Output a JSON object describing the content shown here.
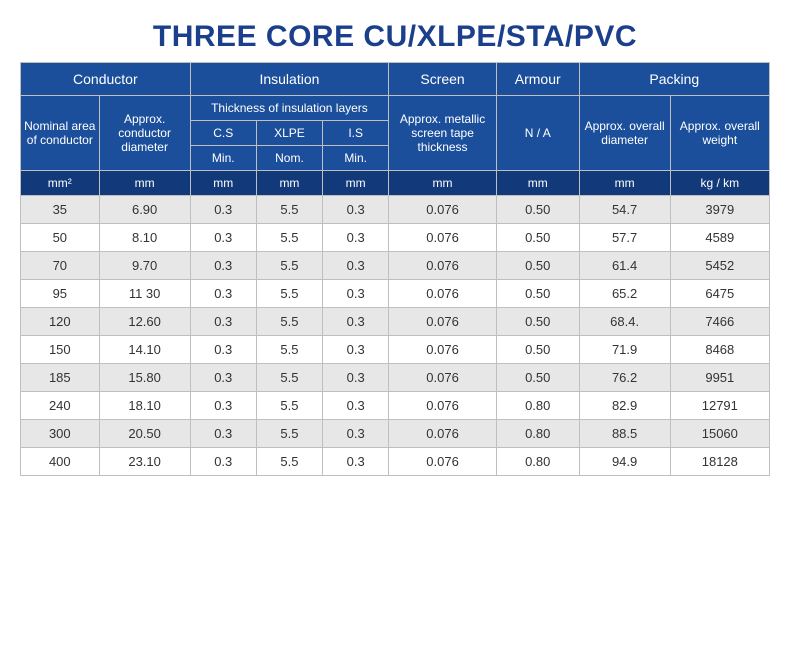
{
  "title": "THREE CORE CU/XLPE/STA/PVC",
  "colors": {
    "title": "#1b3f8b",
    "header_bg": "#1b4f9c",
    "units_bg": "#123a7a",
    "border": "#bfbfbf",
    "zebra": "#e7e7e7",
    "white": "#ffffff"
  },
  "header": {
    "groups": {
      "conductor": "Conductor",
      "insulation": "Insulation",
      "screen": "Screen",
      "armour": "Armour",
      "packing": "Packing"
    },
    "thickness_label": "Thickness of insulation layers",
    "sub": {
      "nominal_area": "Nominal area of conductor",
      "conductor_dia": "Approx. conductor diameter",
      "cs": "C.S",
      "xlpe": "XLPE",
      "is": "I.S",
      "screen": "Approx. metallic screen tape thickness",
      "armour": "N / A",
      "overall_dia": "Approx. overall diameter",
      "overall_wt": "Approx. overall weight"
    },
    "minnom": {
      "cs": "Min.",
      "xlpe": "Nom.",
      "is": "Min."
    },
    "units": {
      "nominal_area": "mm²",
      "conductor_dia": "mm",
      "cs": "mm",
      "xlpe": "mm",
      "is": "mm",
      "screen": "mm",
      "armour": "mm",
      "overall_dia": "mm",
      "overall_wt": "kg / km"
    }
  },
  "rows": [
    {
      "area": "35",
      "dia": "6.90",
      "cs": "0.3",
      "xlpe": "5.5",
      "is": "0.3",
      "screen": "0.076",
      "armour": "0.50",
      "od": "54.7",
      "wt": "3979"
    },
    {
      "area": "50",
      "dia": "8.10",
      "cs": "0.3",
      "xlpe": "5.5",
      "is": "0.3",
      "screen": "0.076",
      "armour": "0.50",
      "od": "57.7",
      "wt": "4589"
    },
    {
      "area": "70",
      "dia": "9.70",
      "cs": "0.3",
      "xlpe": "5.5",
      "is": "0.3",
      "screen": "0.076",
      "armour": "0.50",
      "od": "61.4",
      "wt": "5452"
    },
    {
      "area": "95",
      "dia": "11 30",
      "cs": "0.3",
      "xlpe": "5.5",
      "is": "0.3",
      "screen": "0.076",
      "armour": "0.50",
      "od": "65.2",
      "wt": "6475"
    },
    {
      "area": "120",
      "dia": "12.60",
      "cs": "0.3",
      "xlpe": "5.5",
      "is": "0.3",
      "screen": "0.076",
      "armour": "0.50",
      "od": "68.4.",
      "wt": "7466"
    },
    {
      "area": "150",
      "dia": "14.10",
      "cs": "0.3",
      "xlpe": "5.5",
      "is": "0.3",
      "screen": "0.076",
      "armour": "0.50",
      "od": "71.9",
      "wt": "8468"
    },
    {
      "area": "185",
      "dia": "15.80",
      "cs": "0.3",
      "xlpe": "5.5",
      "is": "0.3",
      "screen": "0.076",
      "armour": "0.50",
      "od": "76.2",
      "wt": "9951"
    },
    {
      "area": "240",
      "dia": "18.10",
      "cs": "0.3",
      "xlpe": "5.5",
      "is": "0.3",
      "screen": "0.076",
      "armour": "0.80",
      "od": "82.9",
      "wt": "12791"
    },
    {
      "area": "300",
      "dia": "20.50",
      "cs": "0.3",
      "xlpe": "5.5",
      "is": "0.3",
      "screen": "0.076",
      "armour": "0.80",
      "od": "88.5",
      "wt": "15060"
    },
    {
      "area": "400",
      "dia": "23.10",
      "cs": "0.3",
      "xlpe": "5.5",
      "is": "0.3",
      "screen": "0.076",
      "armour": "0.80",
      "od": "94.9",
      "wt": "18128"
    }
  ],
  "col_widths_pct": [
    9.5,
    11,
    8,
    8,
    8,
    13,
    10,
    11,
    12
  ]
}
